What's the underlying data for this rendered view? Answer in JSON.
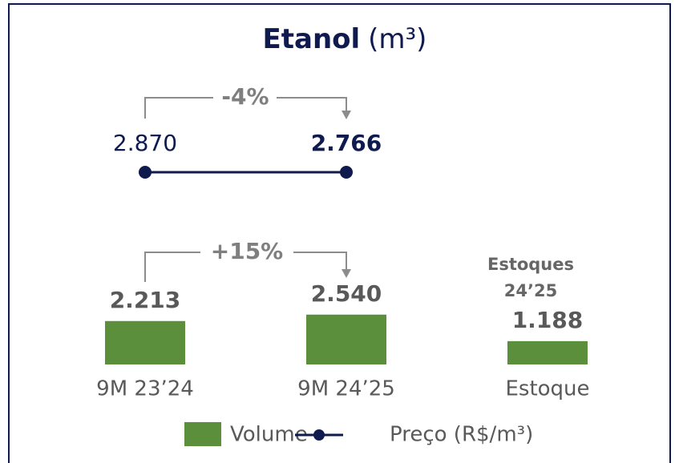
{
  "chart_data": {
    "type": "bar",
    "title": "Etanol",
    "title_unit": "(m³)",
    "categories": [
      "9M 23’24",
      "9M 24’25",
      "Estoque"
    ],
    "series": [
      {
        "name": "Volume",
        "color": "#5b8f3c",
        "values": [
          2213,
          2540,
          1188
        ],
        "value_labels": [
          "2.213",
          "2.540",
          "1.188"
        ]
      },
      {
        "name": "Preço (R$/m³)",
        "type": "line",
        "color": "#0f1a4e",
        "values": [
          2870,
          2766,
          null
        ],
        "value_labels": [
          "2.870",
          "2.766",
          null
        ]
      }
    ],
    "annotations": [
      "-4%",
      "+15%"
    ],
    "stock_note": [
      "Estoques",
      "24’25"
    ]
  }
}
